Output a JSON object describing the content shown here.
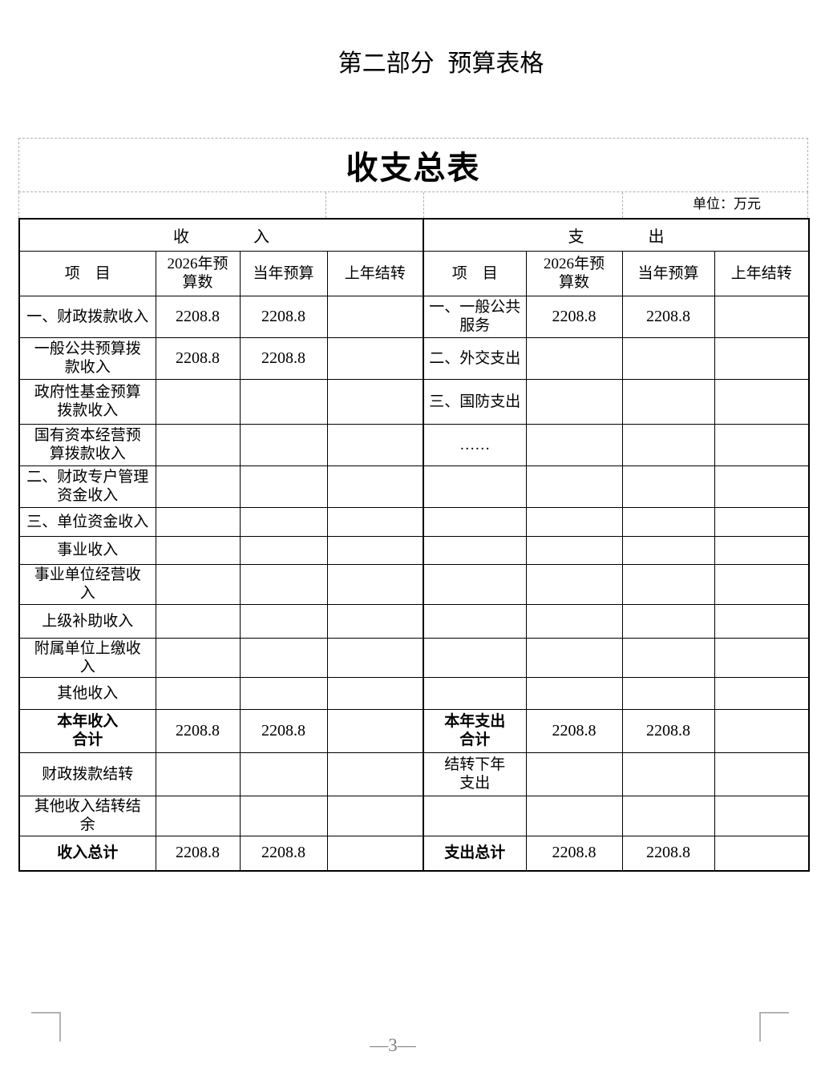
{
  "page": {
    "heading": "第二部分  预算表格",
    "page_number": "—3—"
  },
  "table": {
    "title": "收支总表",
    "unit_label": "单位：万元",
    "group_headers": {
      "income": "收　　　　入",
      "expense": "支　　　　出"
    },
    "column_headers": {
      "item": "项　目",
      "budget_2026": "2026年预\n算数",
      "current_year": "当年预算",
      "carryover": "上年结转"
    },
    "rows": [
      {
        "bold": false,
        "income": {
          "item": "一、财政拨款收入",
          "budget_2026": "2208.8",
          "current_year": "2208.8",
          "carryover": ""
        },
        "expense": {
          "item": "一、一般公共\n服务",
          "budget_2026": "2208.8",
          "current_year": "2208.8",
          "carryover": ""
        }
      },
      {
        "bold": false,
        "income": {
          "item": "一般公共预算拨\n款收入",
          "budget_2026": "2208.8",
          "current_year": "2208.8",
          "carryover": ""
        },
        "expense": {
          "item": "二、外交支出",
          "budget_2026": "",
          "current_year": "",
          "carryover": ""
        }
      },
      {
        "bold": false,
        "income": {
          "item": "政府性基金预算\n拨款收入",
          "budget_2026": "",
          "current_year": "",
          "carryover": ""
        },
        "expense": {
          "item": "三、国防支出",
          "budget_2026": "",
          "current_year": "",
          "carryover": ""
        }
      },
      {
        "bold": false,
        "income": {
          "item": "国有资本经营预\n算拨款收入",
          "budget_2026": "",
          "current_year": "",
          "carryover": ""
        },
        "expense": {
          "item": "……",
          "budget_2026": "",
          "current_year": "",
          "carryover": ""
        }
      },
      {
        "bold": false,
        "income": {
          "item": "二、财政专户管理\n资金收入",
          "budget_2026": "",
          "current_year": "",
          "carryover": ""
        },
        "expense": {
          "item": "",
          "budget_2026": "",
          "current_year": "",
          "carryover": ""
        }
      },
      {
        "bold": false,
        "income": {
          "item": "三、单位资金收入",
          "budget_2026": "",
          "current_year": "",
          "carryover": ""
        },
        "expense": {
          "item": "",
          "budget_2026": "",
          "current_year": "",
          "carryover": ""
        }
      },
      {
        "bold": false,
        "income": {
          "item": "事业收入",
          "budget_2026": "",
          "current_year": "",
          "carryover": ""
        },
        "expense": {
          "item": "",
          "budget_2026": "",
          "current_year": "",
          "carryover": ""
        }
      },
      {
        "bold": false,
        "income": {
          "item": "事业单位经营收\n入",
          "budget_2026": "",
          "current_year": "",
          "carryover": ""
        },
        "expense": {
          "item": "",
          "budget_2026": "",
          "current_year": "",
          "carryover": ""
        }
      },
      {
        "bold": false,
        "income": {
          "item": "上级补助收入",
          "budget_2026": "",
          "current_year": "",
          "carryover": ""
        },
        "expense": {
          "item": "",
          "budget_2026": "",
          "current_year": "",
          "carryover": ""
        }
      },
      {
        "bold": false,
        "income": {
          "item": "附属单位上缴收\n入",
          "budget_2026": "",
          "current_year": "",
          "carryover": ""
        },
        "expense": {
          "item": "",
          "budget_2026": "",
          "current_year": "",
          "carryover": ""
        }
      },
      {
        "bold": false,
        "income": {
          "item": "其他收入",
          "budget_2026": "",
          "current_year": "",
          "carryover": ""
        },
        "expense": {
          "item": "",
          "budget_2026": "",
          "current_year": "",
          "carryover": ""
        }
      },
      {
        "bold": true,
        "income": {
          "item": "本年收入\n合计",
          "budget_2026": "2208.8",
          "current_year": "2208.8",
          "carryover": ""
        },
        "expense": {
          "item": "本年支出\n合计",
          "budget_2026": "2208.8",
          "current_year": "2208.8",
          "carryover": ""
        }
      },
      {
        "bold": false,
        "income": {
          "item": "财政拨款结转",
          "budget_2026": "",
          "current_year": "",
          "carryover": ""
        },
        "expense": {
          "item": "结转下年\n支出",
          "budget_2026": "",
          "current_year": "",
          "carryover": ""
        }
      },
      {
        "bold": false,
        "income": {
          "item": "其他收入结转结\n余",
          "budget_2026": "",
          "current_year": "",
          "carryover": ""
        },
        "expense": {
          "item": "",
          "budget_2026": "",
          "current_year": "",
          "carryover": ""
        }
      },
      {
        "bold": true,
        "income": {
          "item": "收入总计",
          "budget_2026": "2208.8",
          "current_year": "2208.8",
          "carryover": ""
        },
        "expense": {
          "item": "支出总计",
          "budget_2026": "2208.8",
          "current_year": "2208.8",
          "carryover": ""
        }
      }
    ]
  }
}
